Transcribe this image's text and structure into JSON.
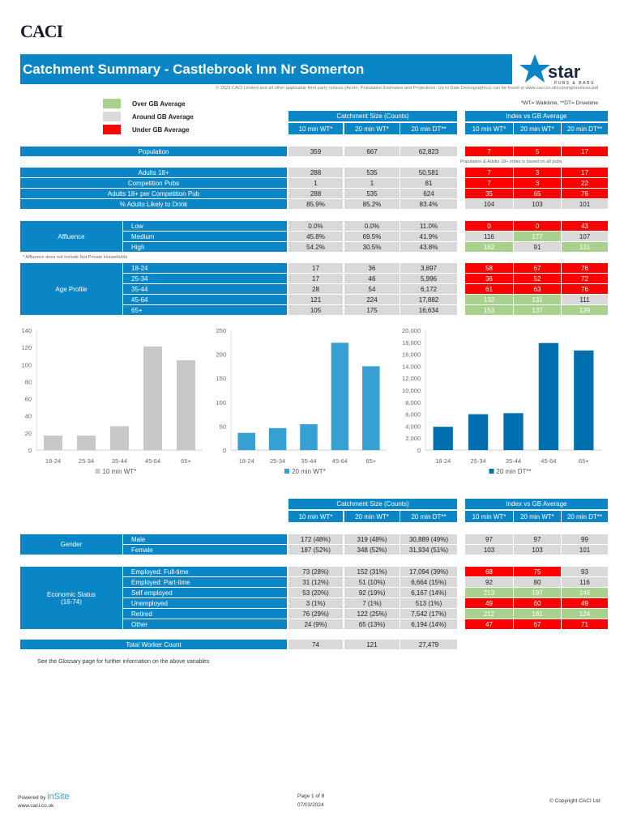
{
  "logo": "CACI",
  "title": "Catchment Summary - Castlebrook Inn Nr Somerton",
  "brand": {
    "name": "star",
    "sub": "PUBS & BARS"
  },
  "notice": "© 2023 CACI Limited and all other applicable third party notices (Acorn, Population Estimates and Projections, Up to Date Demographics) can be found at www.caci.co.uk/copyrightnotices.pdf",
  "legend": [
    {
      "label": "Over GB Average",
      "color": "#A9D18E"
    },
    {
      "label": "Around GB Average",
      "color": "#D9D9D9"
    },
    {
      "label": "Under GB Average",
      "color": "#FF0000"
    }
  ],
  "footnote_wt": "*WT= Walktime, **DT= Drivetime",
  "headers": {
    "counts": "Catchment Size (Counts)",
    "index": "Index vs GB Average",
    "cols": [
      "10 min WT*",
      "20 min WT*",
      "20 min DT**"
    ]
  },
  "sections": [
    {
      "rows": [
        {
          "label": "Population",
          "counts": [
            "359",
            "667",
            "62,823"
          ],
          "index": [
            "7",
            "5",
            "17"
          ],
          "status": [
            "u",
            "u",
            "u"
          ]
        }
      ]
    },
    {
      "rows": [
        {
          "label": "Adults 18+",
          "counts": [
            "288",
            "535",
            "50,581"
          ],
          "index": [
            "7",
            "3",
            "17"
          ],
          "status": [
            "u",
            "u",
            "u"
          ]
        },
        {
          "label": "Competition Pubs",
          "counts": [
            "1",
            "1",
            "81"
          ],
          "index": [
            "7",
            "3",
            "22"
          ],
          "status": [
            "u",
            "u",
            "u"
          ]
        },
        {
          "label": "Adults 18+ per Competition Pub",
          "counts": [
            "288",
            "535",
            "624"
          ],
          "index": [
            "35",
            "65",
            "76"
          ],
          "status": [
            "u",
            "u",
            "u"
          ]
        },
        {
          "label": "% Adults Likely to Drink",
          "counts": [
            "85.9%",
            "85.2%",
            "83.4%"
          ],
          "index": [
            "104",
            "103",
            "101"
          ],
          "status": [
            "a",
            "a",
            "a"
          ]
        }
      ]
    },
    {
      "group": [
        "Affluence"
      ],
      "rows": [
        {
          "label": "Low",
          "counts": [
            "0.0%",
            "0.0%",
            "11.0%"
          ],
          "index": [
            "0",
            "0",
            "43"
          ],
          "status": [
            "u",
            "u",
            "u"
          ]
        },
        {
          "label": "Medium",
          "counts": [
            "45.8%",
            "69.5%",
            "41.9%"
          ],
          "index": [
            "116",
            "177",
            "107"
          ],
          "status": [
            "a",
            "o",
            "a"
          ]
        },
        {
          "label": "High",
          "counts": [
            "54.2%",
            "30.5%",
            "43.8%"
          ],
          "index": [
            "162",
            "91",
            "131"
          ],
          "status": [
            "o",
            "a",
            "o"
          ]
        }
      ]
    },
    {
      "group": [
        "Age Profile"
      ],
      "rows": [
        {
          "label": "18-24",
          "counts": [
            "17",
            "36",
            "3,897"
          ],
          "index": [
            "58",
            "67",
            "76"
          ],
          "status": [
            "u",
            "u",
            "u"
          ]
        },
        {
          "label": "25-34",
          "counts": [
            "17",
            "46",
            "5,996"
          ],
          "index": [
            "36",
            "52",
            "72"
          ],
          "status": [
            "u",
            "u",
            "u"
          ]
        },
        {
          "label": "35-44",
          "counts": [
            "28",
            "54",
            "6,172"
          ],
          "index": [
            "61",
            "63",
            "76"
          ],
          "status": [
            "u",
            "u",
            "u"
          ]
        },
        {
          "label": "45-64",
          "counts": [
            "121",
            "224",
            "17,882"
          ],
          "index": [
            "132",
            "131",
            "111"
          ],
          "status": [
            "o",
            "o",
            "a"
          ]
        },
        {
          "label": "65+",
          "counts": [
            "105",
            "175",
            "16,634"
          ],
          "index": [
            "153",
            "137",
            "139"
          ],
          "status": [
            "o",
            "o",
            "o"
          ]
        }
      ]
    },
    {
      "group": [
        "Gender"
      ],
      "rows": [
        {
          "label": "Male",
          "counts": [
            "172 (48%)",
            "319 (48%)",
            "30,889 (49%)"
          ],
          "index": [
            "97",
            "97",
            "99"
          ],
          "status": [
            "a",
            "a",
            "a"
          ]
        },
        {
          "label": "Female",
          "counts": [
            "187 (52%)",
            "348 (52%)",
            "31,934 (51%)"
          ],
          "index": [
            "103",
            "103",
            "101"
          ],
          "status": [
            "a",
            "a",
            "a"
          ]
        }
      ]
    },
    {
      "group": [
        "Economic Status",
        "(16-74)"
      ],
      "rows": [
        {
          "label": "Employed: Full-time",
          "counts": [
            "73 (28%)",
            "152 (31%)",
            "17,094 (39%)"
          ],
          "index": [
            "68",
            "75",
            "93"
          ],
          "status": [
            "u",
            "u",
            "a"
          ]
        },
        {
          "label": "Employed: Part-time",
          "counts": [
            "31 (12%)",
            "51 (10%)",
            "6,664 (15%)"
          ],
          "index": [
            "92",
            "80",
            "116"
          ],
          "status": [
            "a",
            "a",
            "a"
          ]
        },
        {
          "label": "Self employed",
          "counts": [
            "53 (20%)",
            "92 (19%)",
            "6,167 (14%)"
          ],
          "index": [
            "213",
            "197",
            "146"
          ],
          "status": [
            "o",
            "o",
            "o"
          ]
        },
        {
          "label": "Unemployed",
          "counts": [
            "3 (1%)",
            "7 (1%)",
            "513 (1%)"
          ],
          "index": [
            "49",
            "60",
            "49"
          ],
          "status": [
            "u",
            "u",
            "u"
          ]
        },
        {
          "label": "Retired",
          "counts": [
            "76 (29%)",
            "122 (25%)",
            "7,542 (17%)"
          ],
          "index": [
            "212",
            "181",
            "124"
          ],
          "status": [
            "o",
            "o",
            "o"
          ]
        },
        {
          "label": "Other",
          "counts": [
            "24 (9%)",
            "65 (13%)",
            "6,194 (14%)"
          ],
          "index": [
            "47",
            "67",
            "71"
          ],
          "status": [
            "u",
            "u",
            "u"
          ]
        }
      ]
    },
    {
      "rows": [
        {
          "label": "Total Worker Count",
          "counts": [
            "74",
            "121",
            "27,479"
          ]
        }
      ]
    }
  ],
  "notes": {
    "index_basis": "Population & Adults 18+ index is based on all pubs",
    "affluence": "* Affluence does not include Not Private Households",
    "glossary": "See the Glossary page for further information on the above variables"
  },
  "footer": {
    "powered_by": "Powered by",
    "insite": "inSite",
    "url": "www.caci.co.uk",
    "page": "Page 1 of 8",
    "date": "07/03/2024",
    "copyright": "© Copyright CACI Ltd"
  },
  "colors": {
    "band": "#0A86C6",
    "over": "#A9D18E",
    "around": "#D9D9D9",
    "under": "#FF0000"
  },
  "chart_data": [
    {
      "type": "bar",
      "title": "",
      "categories": [
        "18-24",
        "25-34",
        "35-44",
        "45-64",
        "65+"
      ],
      "series": [
        {
          "name": "10 min WT*",
          "values": [
            17,
            17,
            28,
            121,
            105
          ],
          "color": "#C8C8C8"
        }
      ],
      "ylim": [
        0,
        140
      ],
      "ystep": 20,
      "legend": "bottom"
    },
    {
      "type": "bar",
      "title": "",
      "categories": [
        "18-24",
        "25-34",
        "35-44",
        "45-64",
        "65+"
      ],
      "series": [
        {
          "name": "20 min WT*",
          "values": [
            36,
            46,
            54,
            224,
            175
          ],
          "color": "#36A0D3"
        }
      ],
      "ylim": [
        0,
        250
      ],
      "ystep": 50,
      "legend": "bottom"
    },
    {
      "type": "bar",
      "title": "",
      "categories": [
        "18-24",
        "25-34",
        "35-44",
        "45-64",
        "65+"
      ],
      "series": [
        {
          "name": "20 min DT**",
          "values": [
            3897,
            5996,
            6172,
            17882,
            16634
          ],
          "color": "#0070B0"
        }
      ],
      "ylim": [
        0,
        20000
      ],
      "ystep": 2000,
      "legend": "bottom"
    }
  ]
}
